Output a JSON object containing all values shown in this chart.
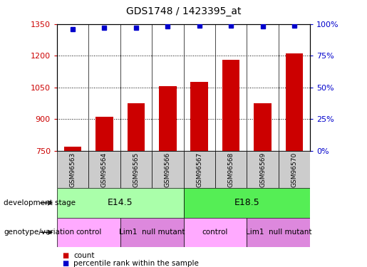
{
  "title": "GDS1748 / 1423395_at",
  "samples": [
    "GSM96563",
    "GSM96564",
    "GSM96565",
    "GSM96566",
    "GSM96567",
    "GSM96568",
    "GSM96569",
    "GSM96570"
  ],
  "counts": [
    770,
    910,
    975,
    1055,
    1075,
    1180,
    975,
    1210
  ],
  "percentiles": [
    96,
    97,
    97,
    98,
    99,
    99,
    98,
    99
  ],
  "ylim_left": [
    750,
    1350
  ],
  "ylim_right": [
    0,
    100
  ],
  "yticks_left": [
    750,
    900,
    1050,
    1200,
    1350
  ],
  "yticks_right": [
    0,
    25,
    50,
    75,
    100
  ],
  "bar_color": "#cc0000",
  "dot_color": "#0000cc",
  "bg_color": "#ffffff",
  "tick_label_color_left": "#cc0000",
  "tick_label_color_right": "#0000cc",
  "development_stage_label": "development stage",
  "genotype_label": "genotype/variation",
  "stages": [
    {
      "label": "E14.5",
      "start": 0,
      "end": 4,
      "color": "#aaffaa"
    },
    {
      "label": "E18.5",
      "start": 4,
      "end": 8,
      "color": "#55ee55"
    }
  ],
  "genotypes": [
    {
      "label": "control",
      "start": 0,
      "end": 2,
      "color": "#ffaaff"
    },
    {
      "label": "Lim1  null mutant",
      "start": 2,
      "end": 4,
      "color": "#dd88dd"
    },
    {
      "label": "control",
      "start": 4,
      "end": 6,
      "color": "#ffaaff"
    },
    {
      "label": "Lim1  null mutant",
      "start": 6,
      "end": 8,
      "color": "#dd88dd"
    }
  ],
  "sample_box_color": "#cccccc",
  "legend_count_color": "#cc0000",
  "legend_pct_color": "#0000cc",
  "gridline_values": [
    900,
    1050,
    1200
  ],
  "pct_scale_factor": 6.0
}
